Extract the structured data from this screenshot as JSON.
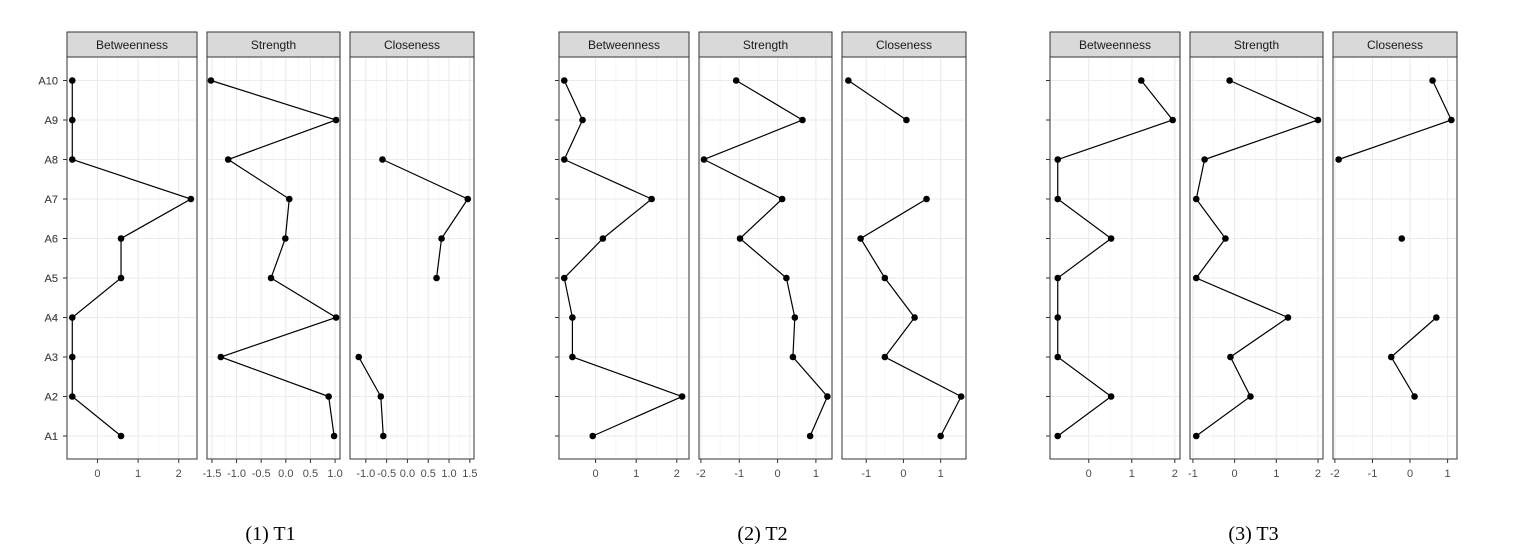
{
  "chart_data": [
    {
      "type": "line",
      "caption": "(1) T1",
      "categories": [
        "A1",
        "A2",
        "A3",
        "A4",
        "A5",
        "A6",
        "A7",
        "A8",
        "A9",
        "A10"
      ],
      "facets": [
        {
          "name": "Betweenness",
          "xlim": [
            -0.75,
            2.45
          ],
          "ticks": [
            0,
            1,
            2
          ],
          "tick_labels": [
            "0",
            "1",
            "2"
          ],
          "values": [
            0.58,
            -0.62,
            -0.62,
            -0.62,
            0.58,
            0.58,
            2.3,
            -0.62,
            -0.62,
            -0.62
          ]
        },
        {
          "name": "Strength",
          "xlim": [
            -1.6,
            1.1
          ],
          "ticks": [
            -1.5,
            -1.0,
            -0.5,
            0.0,
            0.5,
            1.0
          ],
          "tick_labels": [
            "-1.5",
            "-1.0",
            "-0.5",
            "0.0",
            "0.5",
            "1.0"
          ],
          "values": [
            0.98,
            0.87,
            -1.32,
            1.02,
            -0.3,
            -0.01,
            0.07,
            -1.17,
            1.02,
            -1.52
          ]
        },
        {
          "name": "Closeness",
          "xlim": [
            -1.38,
            1.6
          ],
          "ticks": [
            -1.0,
            -0.5,
            0.0,
            0.5,
            1.0,
            1.5
          ],
          "tick_labels": [
            "-1.0",
            "-0.5",
            "0.0",
            "0.5",
            "1.0",
            "1.5"
          ],
          "values": [
            -0.58,
            -0.64,
            -1.17,
            null,
            0.7,
            0.82,
            1.45,
            -0.6,
            null,
            null
          ]
        }
      ]
    },
    {
      "type": "line",
      "caption": "(2) T2",
      "categories": [
        "A1",
        "A2",
        "A3",
        "A4",
        "A5",
        "A6",
        "A7",
        "A8",
        "A9",
        "A10"
      ],
      "facets": [
        {
          "name": "Betweenness",
          "xlim": [
            -0.9,
            2.3
          ],
          "ticks": [
            0,
            1,
            2
          ],
          "tick_labels": [
            "0",
            "1",
            "2"
          ],
          "values": [
            -0.07,
            2.13,
            -0.57,
            -0.57,
            -0.77,
            0.18,
            1.38,
            -0.77,
            -0.32,
            -0.77
          ]
        },
        {
          "name": "Strength",
          "xlim": [
            -2.05,
            1.42
          ],
          "ticks": [
            -2,
            -1,
            0,
            1
          ],
          "tick_labels": [
            "-2",
            "-1",
            "0",
            "1"
          ],
          "values": [
            0.85,
            1.3,
            0.4,
            0.45,
            0.23,
            -0.98,
            0.12,
            -1.92,
            0.65,
            -1.08
          ]
        },
        {
          "name": "Closeness",
          "xlim": [
            -1.65,
            1.68
          ],
          "ticks": [
            -1,
            0,
            1
          ],
          "tick_labels": [
            "-1",
            "0",
            "1"
          ],
          "values": [
            1.0,
            1.55,
            -0.5,
            0.3,
            -0.5,
            -1.15,
            0.62,
            null,
            0.08,
            -1.48
          ]
        }
      ]
    },
    {
      "type": "line",
      "caption": "(3) T3",
      "categories": [
        "A1",
        "A2",
        "A3",
        "A4",
        "A5",
        "A6",
        "A7",
        "A8",
        "A9",
        "A10"
      ],
      "facets": [
        {
          "name": "Betweenness",
          "xlim": [
            -0.9,
            2.12
          ],
          "ticks": [
            0,
            1,
            2
          ],
          "tick_labels": [
            "0",
            "1",
            "2"
          ],
          "values": [
            -0.72,
            0.52,
            -0.72,
            -0.72,
            -0.72,
            0.52,
            -0.72,
            -0.72,
            1.95,
            1.22
          ]
        },
        {
          "name": "Strength",
          "xlim": [
            -1.07,
            2.12
          ],
          "ticks": [
            -1,
            0,
            1,
            2
          ],
          "tick_labels": [
            "-1",
            "0",
            "1",
            "2"
          ],
          "values": [
            -0.92,
            0.38,
            -0.1,
            1.28,
            -0.92,
            -0.22,
            -0.92,
            -0.72,
            2.0,
            -0.12
          ]
        },
        {
          "name": "Closeness",
          "xlim": [
            -2.05,
            1.25
          ],
          "ticks": [
            -2,
            -1,
            0,
            1
          ],
          "tick_labels": [
            "-2",
            "-1",
            "0",
            "1"
          ],
          "values": [
            null,
            0.12,
            -0.5,
            0.7,
            null,
            -0.22,
            null,
            -1.9,
            1.1,
            0.6
          ]
        }
      ]
    }
  ]
}
